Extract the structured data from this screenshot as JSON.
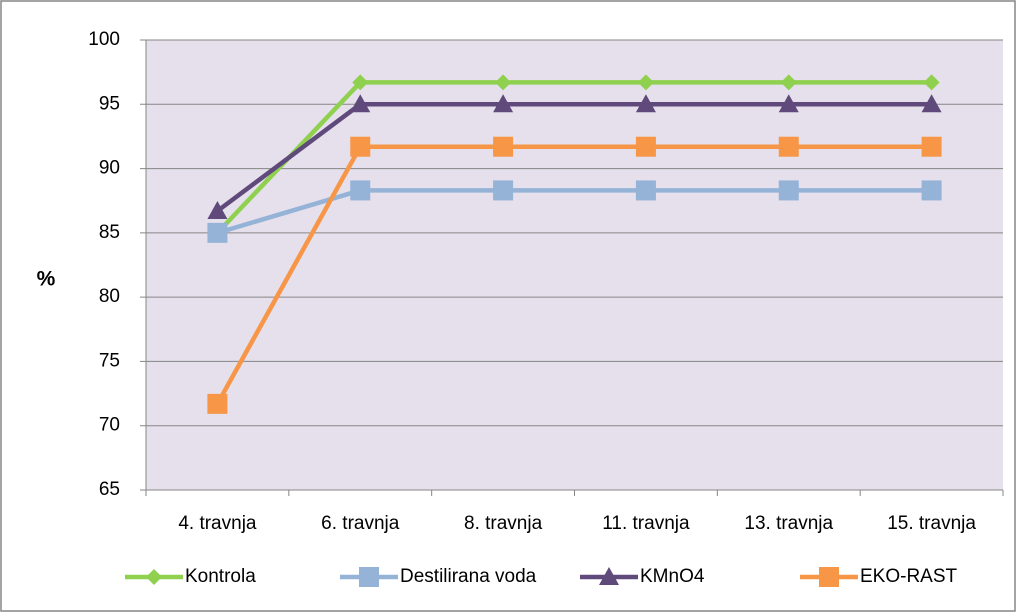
{
  "chart_data": {
    "type": "line",
    "categories": [
      "4. travnja",
      "6. travnja",
      "8. travnja",
      "11. travnja",
      "13. travnja",
      "15. travnja"
    ],
    "y_label": "%",
    "series": [
      {
        "name": "Kontrola",
        "color": "#8fd14f",
        "marker": "diamond",
        "values": [
          85,
          96.7,
          96.7,
          96.7,
          96.7,
          96.7
        ]
      },
      {
        "name": "Destilirana voda",
        "color": "#95b3d7",
        "marker": "square",
        "values": [
          85,
          88.3,
          88.3,
          88.3,
          88.3,
          88.3
        ]
      },
      {
        "name": "KMnO4",
        "color": "#604a7b",
        "marker": "triangle",
        "values": [
          86.7,
          95,
          95,
          95,
          95,
          95
        ]
      },
      {
        "name": "EKO-RAST",
        "color": "#f79646",
        "marker": "square",
        "values": [
          71.7,
          91.7,
          91.7,
          91.7,
          91.7,
          91.7
        ]
      }
    ],
    "ylim": [
      65,
      100
    ],
    "yticks": [
      65,
      70,
      75,
      80,
      85,
      90,
      95,
      100
    ],
    "grid": true,
    "legend": "bottom",
    "plot_background": "#e5e0ec"
  }
}
